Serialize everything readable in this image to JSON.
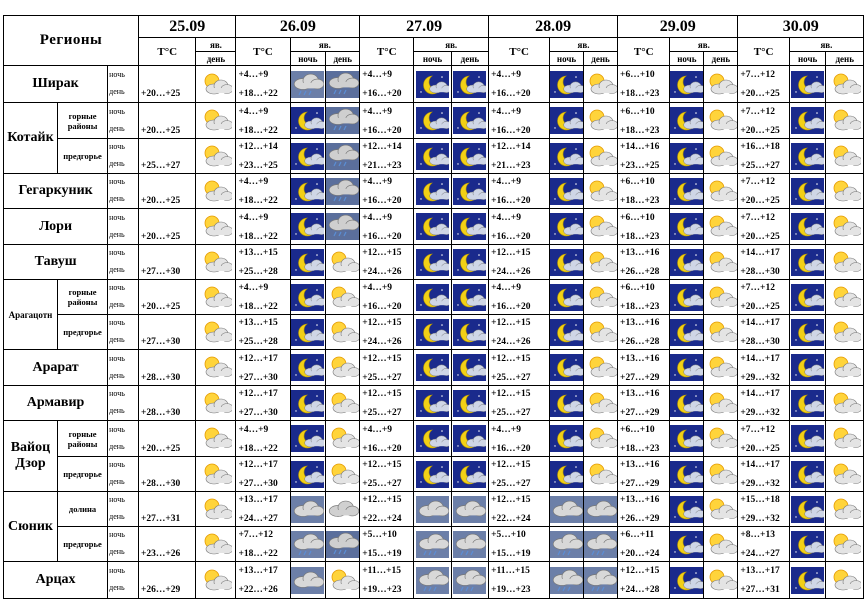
{
  "header": {
    "regions_label": "Регионы",
    "dates": [
      "25.09",
      "26.09",
      "27.09",
      "28.09",
      "29.09",
      "30.09"
    ],
    "temp_label": "T°C",
    "phen_label": "яв.",
    "night_label": "ночь",
    "day_label": "день"
  },
  "colors": {
    "night_bg": "#1a2a8c",
    "moon": "#f2d016",
    "sun": "#ffd43b",
    "cloud": "#c8c8c8"
  },
  "rows": [
    {
      "region": "Ширак",
      "sub": "",
      "temps": [
        "+20…+25",
        "+4…+9 | +18…+22",
        "+4…+9 | +16…+20",
        "+4…+9 | +16…+20",
        "+6…+10 | +18…+23",
        "+7…+12 | +20…+25"
      ],
      "icons": [
        "sun-cloud",
        "night-cloud-rain | cloud-rain",
        "moon | moon",
        "moon | sun-cloud",
        "moon | sun-cloud",
        "moon | sun-cloud"
      ]
    },
    {
      "region": "Котайк",
      "sub": "горные районы",
      "temps": [
        "+20…+25",
        "+4…+9 | +18…+22",
        "+4…+9 | +16…+20",
        "+4…+9 | +16…+20",
        "+6…+10 | +18…+23",
        "+7…+12 | +20…+25"
      ],
      "icons": [
        "sun-cloud",
        "moon | cloud-rain",
        "moon | moon",
        "moon | sun-cloud",
        "moon | sun-cloud",
        "moon | sun-cloud"
      ]
    },
    {
      "region": "",
      "sub": "предгорье",
      "temps": [
        "+25…+27",
        "+12…+14 | +23…+25",
        "+12…+14 | +21…+23",
        "+12…+14 | +21…+23",
        "+14…+16 | +23…+25",
        "+16…+18 | +25…+27"
      ],
      "icons": [
        "sun-cloud",
        "moon | cloud-rain",
        "moon | moon",
        "moon | sun-cloud",
        "moon | sun-cloud",
        "moon | sun-cloud"
      ]
    },
    {
      "region": "Гегаркуник",
      "sub": "",
      "temps": [
        "+20…+25",
        "+4…+9 | +18…+22",
        "+4…+9 | +16…+20",
        "+4…+9 | +16…+20",
        "+6…+10 | +18…+23",
        "+7…+12 | +20…+25"
      ],
      "icons": [
        "sun-cloud",
        "moon | cloud-rain",
        "moon | moon",
        "moon | sun-cloud",
        "moon | sun-cloud",
        "moon | sun-cloud"
      ]
    },
    {
      "region": "Лори",
      "sub": "",
      "temps": [
        "+20…+25",
        "+4…+9 | +18…+22",
        "+4…+9 | +16…+20",
        "+4…+9 | +16…+20",
        "+6…+10 | +18…+23",
        "+7…+12 | +20…+25"
      ],
      "icons": [
        "sun-cloud",
        "moon | cloud-rain",
        "moon | moon",
        "moon | sun-cloud",
        "moon | sun-cloud",
        "moon | sun-cloud"
      ]
    },
    {
      "region": "Тавуш",
      "sub": "",
      "temps": [
        "+27…+30",
        "+13…+15 | +25…+28",
        "+12…+15 | +24…+26",
        "+12…+15 | +24…+26",
        "+13…+16 | +26…+28",
        "+14…+17 | +28…+30"
      ],
      "icons": [
        "sun-cloud",
        "moon | sun-cloud",
        "moon | moon",
        "moon | sun-cloud",
        "moon | sun-cloud",
        "moon | sun-cloud"
      ]
    },
    {
      "region": "Арагацотн",
      "sub": "горные районы",
      "temps": [
        "+20…+25",
        "+4…+9 | +18…+22",
        "+4…+9 | +16…+20",
        "+4…+9 | +16…+20",
        "+6…+10 | +18…+23",
        "+7…+12 | +20…+25"
      ],
      "icons": [
        "sun-cloud",
        "moon | sun-cloud",
        "moon | moon",
        "moon | sun-cloud",
        "moon | sun-cloud",
        "moon | sun-cloud"
      ]
    },
    {
      "region": "",
      "sub": "предгорье",
      "temps": [
        "+27…+30",
        "+13…+15 | +25…+28",
        "+12…+15 | +24…+26",
        "+12…+15 | +24…+26",
        "+13…+16 | +26…+28",
        "+14…+17 | +28…+30"
      ],
      "icons": [
        "sun-cloud",
        "moon | sun-cloud",
        "moon | moon",
        "moon | sun-cloud",
        "moon | sun-cloud",
        "moon | sun-cloud"
      ]
    },
    {
      "region": "Арарат",
      "sub": "",
      "temps": [
        "+28…+30",
        "+12…+17 | +27…+30",
        "+12…+15 | +25…+27",
        "+12…+15 | +25…+27",
        "+13…+16 | +27…+29",
        "+14…+17 | +29…+32"
      ],
      "icons": [
        "sun-cloud",
        "moon | sun-cloud",
        "moon | moon",
        "moon | sun-cloud",
        "moon | sun-cloud",
        "moon | sun-cloud"
      ]
    },
    {
      "region": "Армавир",
      "sub": "",
      "temps": [
        "+28…+30",
        "+12…+17 | +27…+30",
        "+12…+15 | +25…+27",
        "+12…+15 | +25…+27",
        "+13…+16 | +27…+29",
        "+14…+17 | +29…+32"
      ],
      "icons": [
        "sun-cloud",
        "moon | sun-cloud",
        "moon | moon",
        "moon | sun-cloud",
        "moon | sun-cloud",
        "moon | sun-cloud"
      ]
    },
    {
      "region": "Вайоц Дзор",
      "sub": "горные районы",
      "temps": [
        "+20…+25",
        "+4…+9 | +18…+22",
        "+4…+9 | +16…+20",
        "+4…+9 | +16…+20",
        "+6…+10 | +18…+23",
        "+7…+12 | +20…+25"
      ],
      "icons": [
        "sun-cloud",
        "moon | sun-cloud",
        "moon | moon",
        "moon | sun-cloud",
        "moon | sun-cloud",
        "moon | sun-cloud"
      ]
    },
    {
      "region": "",
      "sub": "предгорье",
      "temps": [
        "+28…+30",
        "+12…+17 | +27…+30",
        "+12…+15 | +25…+27",
        "+12…+15 | +25…+27",
        "+13…+16 | +27…+29",
        "+14…+17 | +29…+32"
      ],
      "icons": [
        "sun-cloud",
        "moon | sun-cloud",
        "moon | moon",
        "moon | sun-cloud",
        "moon | sun-cloud",
        "moon | sun-cloud"
      ]
    },
    {
      "region": "Сюник",
      "sub": "долина",
      "temps": [
        "+27…+31",
        "+13…+17 | +24…+27",
        "+12…+15 | +22…+24",
        "+12…+15 | +22…+24",
        "+13…+16 | +26…+29",
        "+15…+18 | +29…+32"
      ],
      "icons": [
        "sun-cloud",
        "night-cloud | cloud",
        "night-cloud | night-cloud",
        "night-cloud | night-cloud",
        "moon | sun-cloud",
        "moon | sun-cloud"
      ]
    },
    {
      "region": "",
      "sub": "предгорье",
      "temps": [
        "+23…+26",
        "+7…+12 | +18…+22",
        "+5…+10 | +15…+19",
        "+5…+10 | +15…+19",
        "+6…+11 | +20…+24",
        "+8…+13 | +24…+27"
      ],
      "icons": [
        "sun-cloud",
        "night-cloud-rain | cloud-rain",
        "night-cloud-rain | night-cloud-rain",
        "night-cloud-rain | night-cloud-rain",
        "moon | sun-cloud",
        "moon | sun-cloud"
      ]
    },
    {
      "region": "Арцах",
      "sub": "",
      "temps": [
        "+26…+29",
        "+13…+17 | +22…+26",
        "+11…+15 | +19…+23",
        "+11…+15 | +19…+23",
        "+12…+15 | +24…+28",
        "+13…+17 | +27…+31"
      ],
      "icons": [
        "sun-cloud",
        "night-cloud | sun-cloud",
        "night-cloud-rain | night-cloud-rain",
        "night-cloud-rain | night-cloud-rain",
        "moon | sun-cloud",
        "moon | sun-cloud"
      ]
    }
  ]
}
